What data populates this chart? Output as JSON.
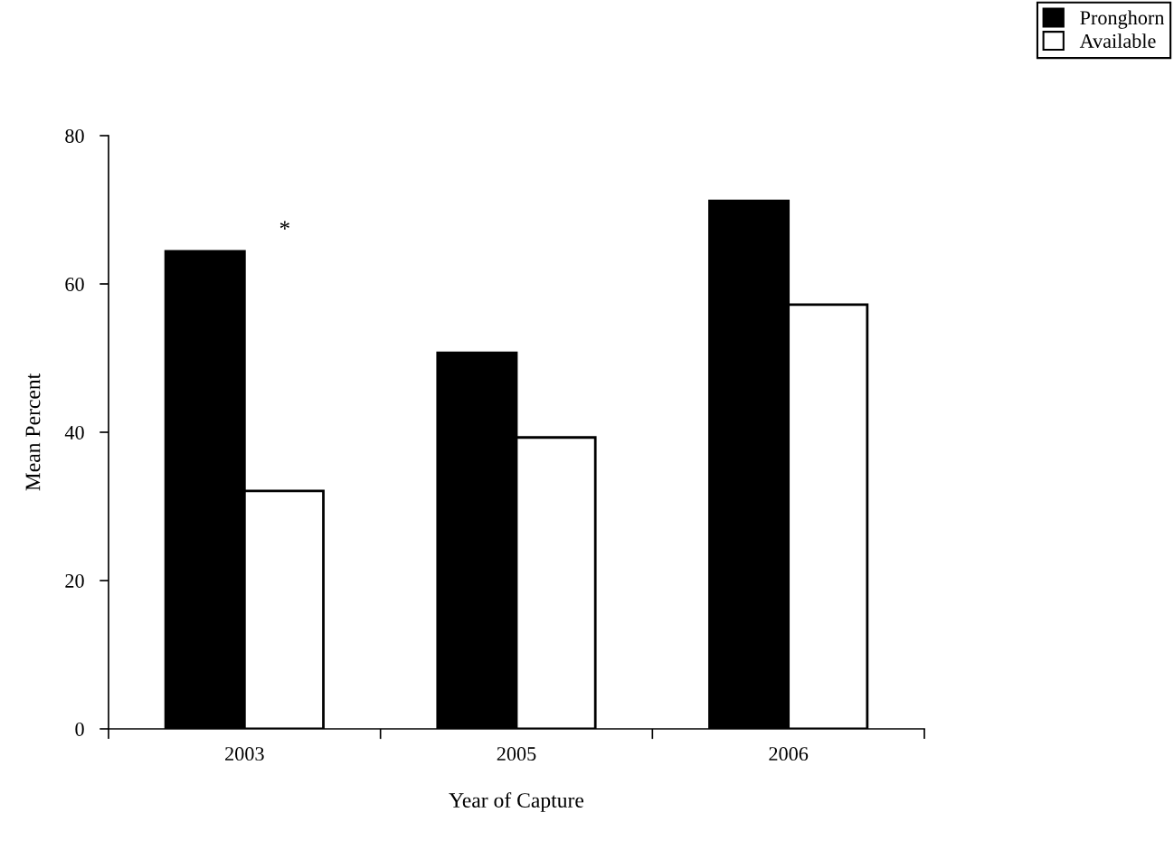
{
  "chart_data": {
    "type": "bar",
    "xlabel": "Year of Capture",
    "ylabel": "Mean Percent",
    "categories": [
      "2003",
      "2005",
      "2006"
    ],
    "series": [
      {
        "name": "Pronghorn",
        "color": "#000000",
        "values": [
          64.4,
          50.7,
          71.2
        ]
      },
      {
        "name": "Available",
        "color": "#ffffff",
        "values": [
          32.1,
          39.3,
          57.2
        ]
      }
    ],
    "ylim": [
      0,
      80
    ],
    "yticks": [
      0,
      20,
      40,
      60,
      80
    ],
    "grid": false,
    "legend": "top right",
    "annotations": [
      "*"
    ]
  }
}
